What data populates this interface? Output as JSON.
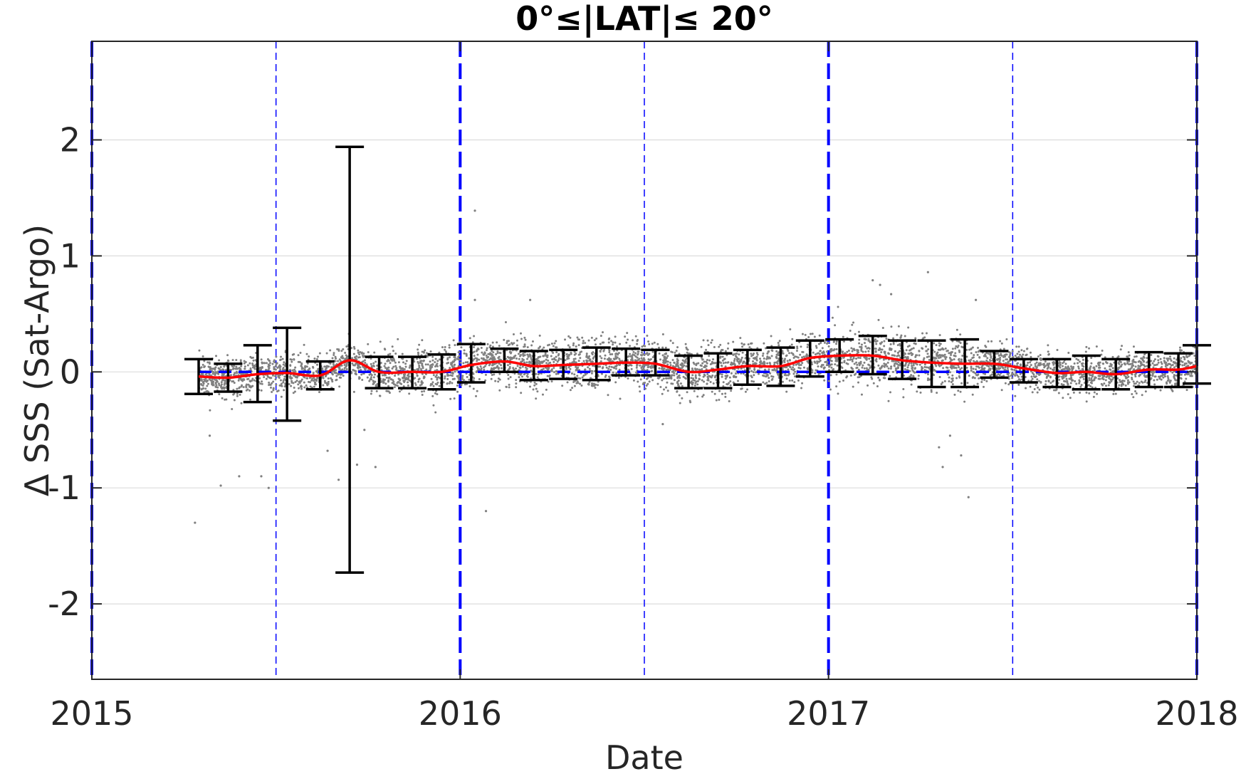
{
  "chart_data": {
    "type": "scatter",
    "title": "0°≤|LAT|≤ 20°",
    "xlabel": "Date",
    "ylabel": "Δ SSS (Sat-Argo)",
    "xlim": [
      2015.0,
      2018.0
    ],
    "ylim": [
      -2.65,
      2.85
    ],
    "x_ticks": [
      "2015",
      "2016",
      "2017",
      "2018"
    ],
    "y_ticks": [
      "-2",
      "-1",
      "0",
      "1",
      "2"
    ],
    "grid": true,
    "colors": {
      "scatter": "#808080",
      "mean_line": "#ff0000",
      "error_bars": "#000000",
      "reference_lines": "#0000ff",
      "grid": "#dcdcdc",
      "axes": "#262626"
    },
    "series": [
      {
        "kind": "scatter_cloud",
        "x_range": [
          2015.29,
          2018.0
        ],
        "y_center": 0.0,
        "y_spread": 0.15
      },
      {
        "kind": "mean_line",
        "x": [
          2015.29,
          2015.37,
          2015.45,
          2015.53,
          2015.62,
          2015.7,
          2015.78,
          2015.87,
          2015.95,
          2016.03,
          2016.12,
          2016.2,
          2016.28,
          2016.37,
          2016.45,
          2016.53,
          2016.62,
          2016.7,
          2016.78,
          2016.87,
          2016.95,
          2017.03,
          2017.12,
          2017.2,
          2017.28,
          2017.37,
          2017.45,
          2017.53,
          2017.62,
          2017.7,
          2017.78,
          2017.87,
          2017.95,
          2018.0
        ],
        "y": [
          -0.04,
          -0.05,
          -0.02,
          -0.01,
          -0.03,
          0.1,
          0.0,
          0.0,
          0.0,
          0.06,
          0.09,
          0.05,
          0.06,
          0.07,
          0.08,
          0.07,
          0.0,
          0.02,
          0.05,
          0.05,
          0.12,
          0.14,
          0.14,
          0.1,
          0.08,
          0.07,
          0.07,
          0.03,
          -0.01,
          0.0,
          -0.02,
          0.02,
          0.02,
          0.05
        ]
      },
      {
        "kind": "error_bars",
        "x": [
          2015.29,
          2015.37,
          2015.45,
          2015.53,
          2015.62,
          2015.7,
          2015.78,
          2015.87,
          2015.95,
          2016.03,
          2016.12,
          2016.2,
          2016.28,
          2016.37,
          2016.45,
          2016.53,
          2016.62,
          2016.7,
          2016.78,
          2016.87,
          2016.95,
          2017.03,
          2017.12,
          2017.2,
          2017.28,
          2017.37,
          2017.45,
          2017.53,
          2017.62,
          2017.7,
          2017.78,
          2017.87,
          2017.95,
          2018.0
        ],
        "y": [
          -0.04,
          -0.05,
          -0.02,
          -0.02,
          -0.03,
          0.1,
          0.0,
          0.0,
          0.0,
          0.07,
          0.09,
          0.05,
          0.06,
          0.07,
          0.08,
          0.07,
          0.0,
          0.01,
          0.05,
          0.05,
          0.12,
          0.13,
          0.13,
          0.1,
          0.07,
          0.07,
          0.06,
          0.02,
          -0.01,
          0.0,
          -0.02,
          0.02,
          0.02,
          0.05
        ],
        "lower": [
          -0.19,
          -0.17,
          -0.26,
          -0.42,
          -0.15,
          -1.73,
          -0.14,
          -0.14,
          -0.15,
          -0.09,
          0.0,
          -0.07,
          -0.06,
          -0.07,
          -0.03,
          -0.03,
          -0.14,
          -0.14,
          -0.11,
          -0.12,
          -0.04,
          0.0,
          -0.02,
          -0.06,
          -0.13,
          -0.13,
          -0.05,
          -0.09,
          -0.13,
          -0.15,
          -0.15,
          -0.13,
          -0.13,
          -0.1
        ],
        "upper": [
          0.11,
          0.07,
          0.23,
          0.38,
          0.09,
          1.94,
          0.13,
          0.13,
          0.15,
          0.24,
          0.2,
          0.18,
          0.19,
          0.21,
          0.2,
          0.19,
          0.14,
          0.16,
          0.19,
          0.21,
          0.27,
          0.28,
          0.31,
          0.27,
          0.27,
          0.28,
          0.18,
          0.11,
          0.11,
          0.14,
          0.11,
          0.17,
          0.16,
          0.23
        ]
      },
      {
        "kind": "reference_line",
        "y": 0,
        "x_range": [
          2015.29,
          2018.0
        ],
        "style": "dashed"
      }
    ],
    "vertical_lines": [
      {
        "x": 2015.0,
        "style": "thick-dashed"
      },
      {
        "x": 2015.5,
        "style": "thin-dashed"
      },
      {
        "x": 2016.0,
        "style": "thick-dashed"
      },
      {
        "x": 2016.5,
        "style": "thin-dashed"
      },
      {
        "x": 2017.0,
        "style": "thick-dashed"
      },
      {
        "x": 2017.5,
        "style": "thin-dashed"
      },
      {
        "x": 2018.0,
        "style": "thick-dashed"
      }
    ],
    "scatter_outliers": [
      {
        "x": 2015.28,
        "y": -1.3
      },
      {
        "x": 2015.32,
        "y": -0.55
      },
      {
        "x": 2015.35,
        "y": -0.98
      },
      {
        "x": 2015.4,
        "y": -0.9
      },
      {
        "x": 2015.46,
        "y": -0.9
      },
      {
        "x": 2015.48,
        "y": -1.0
      },
      {
        "x": 2015.64,
        "y": -0.68
      },
      {
        "x": 2015.67,
        "y": -0.93
      },
      {
        "x": 2015.72,
        "y": -0.8
      },
      {
        "x": 2015.77,
        "y": -0.82
      },
      {
        "x": 2015.74,
        "y": -0.5
      },
      {
        "x": 2016.04,
        "y": 1.39
      },
      {
        "x": 2016.04,
        "y": 0.62
      },
      {
        "x": 2016.07,
        "y": -1.2
      },
      {
        "x": 2016.19,
        "y": 0.62
      },
      {
        "x": 2016.55,
        "y": -0.45
      },
      {
        "x": 2017.12,
        "y": 0.79
      },
      {
        "x": 2017.14,
        "y": 0.75
      },
      {
        "x": 2017.17,
        "y": 0.67
      },
      {
        "x": 2017.27,
        "y": 0.86
      },
      {
        "x": 2017.31,
        "y": -0.82
      },
      {
        "x": 2017.3,
        "y": -0.65
      },
      {
        "x": 2017.33,
        "y": -0.55
      },
      {
        "x": 2017.36,
        "y": -0.72
      },
      {
        "x": 2017.38,
        "y": -1.08
      },
      {
        "x": 2017.4,
        "y": 0.62
      }
    ]
  }
}
